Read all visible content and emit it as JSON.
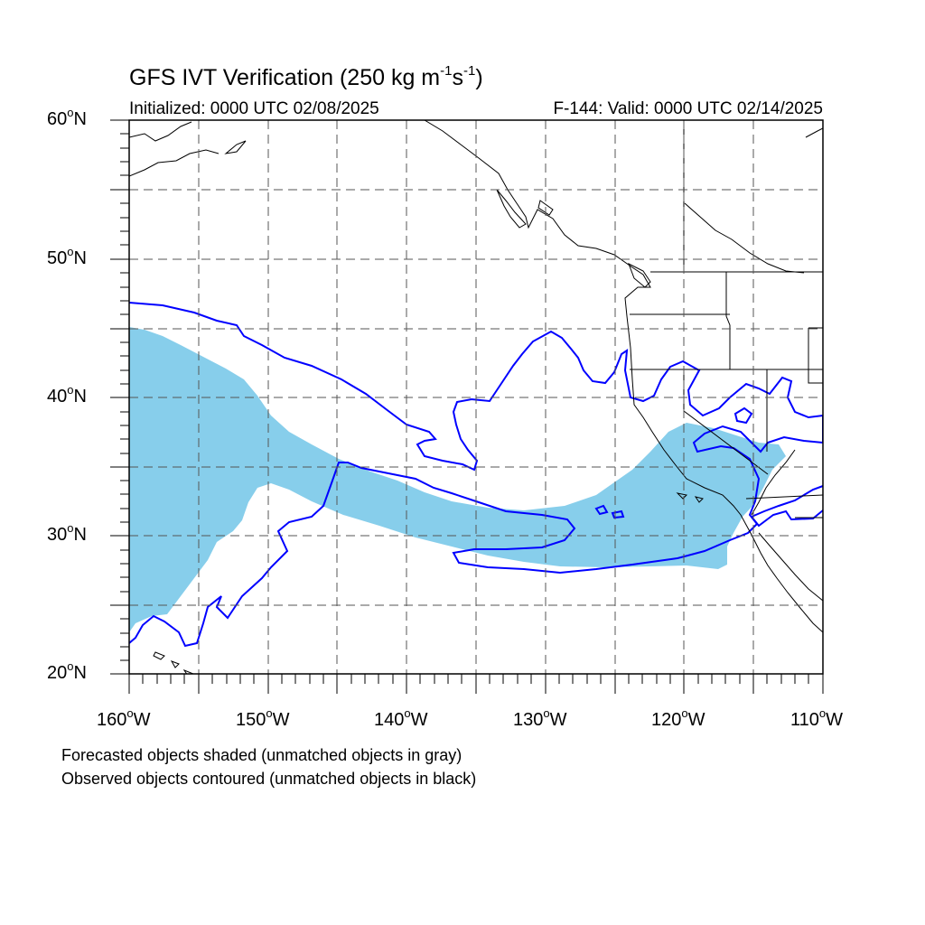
{
  "title": {
    "main": "GFS IVT Verification (250 kg m",
    "sup1": "-1",
    "mid": "s",
    "sup2": "-1",
    "end": ")"
  },
  "subtitle_left": "Initialized: 0000 UTC 02/08/2025",
  "subtitle_right": "F-144: Valid: 0000 UTC 02/14/2025",
  "axes": {
    "lat_labels": [
      {
        "text": "60",
        "suffix": "N"
      },
      {
        "text": "50",
        "suffix": "N"
      },
      {
        "text": "40",
        "suffix": "N"
      },
      {
        "text": "30",
        "suffix": "N"
      },
      {
        "text": "20",
        "suffix": "N"
      }
    ],
    "lon_labels": [
      {
        "text": "160",
        "suffix": "W"
      },
      {
        "text": "150",
        "suffix": "W"
      },
      {
        "text": "140",
        "suffix": "W"
      },
      {
        "text": "130",
        "suffix": "W"
      },
      {
        "text": "120",
        "suffix": "W"
      },
      {
        "text": "110",
        "suffix": "W"
      }
    ],
    "lat_range": [
      20,
      60
    ],
    "lon_range": [
      -160,
      -110
    ],
    "grid": "dashed every 5 degrees"
  },
  "legend": {
    "line1": "Forecasted objects shaded (unmatched objects in gray)",
    "line2": "Observed objects contoured (unmatched objects in black)"
  },
  "colors": {
    "forecast_fill": "#87ceeb",
    "observed_contour": "#0000ff",
    "coastline": "#000000",
    "grid": "#555555"
  }
}
